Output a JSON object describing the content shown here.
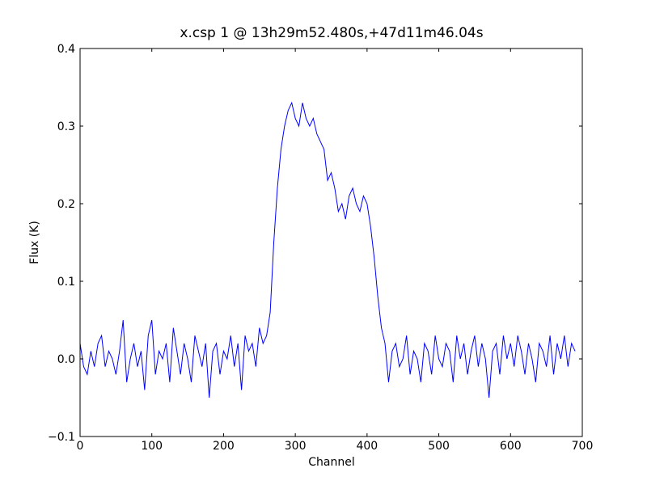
{
  "chart_data": {
    "type": "line",
    "title": "x.csp 1 @ 13h29m52.480s,+47d11m46.04s",
    "x_label": "Channel",
    "y_label": "Flux (K)",
    "xlim": [
      0,
      700
    ],
    "ylim": [
      -0.1,
      0.4
    ],
    "xticks": [
      0,
      100,
      200,
      300,
      400,
      500,
      600,
      700
    ],
    "yticks": [
      {
        "value": -0.1,
        "label": "−0.1"
      },
      {
        "value": 0,
        "label": "0.0"
      },
      0.1,
      0.2,
      0.3,
      0.4
    ],
    "x": [
      0,
      5,
      10,
      15,
      20,
      25,
      30,
      35,
      40,
      45,
      50,
      55,
      60,
      65,
      70,
      75,
      80,
      85,
      90,
      95,
      100,
      105,
      110,
      115,
      120,
      125,
      130,
      135,
      140,
      145,
      150,
      155,
      160,
      165,
      170,
      175,
      180,
      185,
      190,
      195,
      200,
      205,
      210,
      215,
      220,
      225,
      230,
      235,
      240,
      245,
      250,
      255,
      260,
      265,
      270,
      275,
      280,
      285,
      290,
      295,
      300,
      305,
      310,
      315,
      320,
      325,
      330,
      335,
      340,
      345,
      350,
      355,
      360,
      365,
      370,
      375,
      380,
      385,
      390,
      395,
      400,
      405,
      410,
      415,
      420,
      425,
      430,
      435,
      440,
      445,
      450,
      455,
      460,
      465,
      470,
      475,
      480,
      485,
      490,
      495,
      500,
      505,
      510,
      515,
      520,
      525,
      530,
      535,
      540,
      545,
      550,
      555,
      560,
      565,
      570,
      575,
      580,
      585,
      590,
      595,
      600,
      605,
      610,
      615,
      620,
      625,
      630,
      635,
      640,
      645,
      650,
      655,
      660,
      665,
      670,
      675,
      680,
      685,
      690
    ],
    "series": [
      {
        "color": "#0000ff",
        "values": [
          0.02,
          -0.01,
          -0.02,
          0.01,
          -0.01,
          0.02,
          0.03,
          -0.01,
          0.01,
          0.0,
          -0.02,
          0.01,
          0.05,
          -0.03,
          0.0,
          0.02,
          -0.01,
          0.01,
          -0.04,
          0.03,
          0.05,
          -0.02,
          0.01,
          0.0,
          0.02,
          -0.03,
          0.04,
          0.01,
          -0.02,
          0.02,
          0.0,
          -0.03,
          0.03,
          0.01,
          -0.01,
          0.02,
          -0.05,
          0.01,
          0.02,
          -0.02,
          0.01,
          0.0,
          0.03,
          -0.01,
          0.02,
          -0.04,
          0.03,
          0.01,
          0.02,
          -0.01,
          0.04,
          0.02,
          0.03,
          0.06,
          0.15,
          0.22,
          0.27,
          0.3,
          0.32,
          0.33,
          0.31,
          0.3,
          0.33,
          0.31,
          0.3,
          0.31,
          0.29,
          0.28,
          0.27,
          0.23,
          0.24,
          0.22,
          0.19,
          0.2,
          0.18,
          0.21,
          0.22,
          0.2,
          0.19,
          0.21,
          0.2,
          0.17,
          0.13,
          0.08,
          0.04,
          0.02,
          -0.03,
          0.01,
          0.02,
          -0.01,
          0.0,
          0.03,
          -0.02,
          0.01,
          0.0,
          -0.03,
          0.02,
          0.01,
          -0.02,
          0.03,
          0.0,
          -0.01,
          0.02,
          0.01,
          -0.03,
          0.03,
          0.0,
          0.02,
          -0.02,
          0.01,
          0.03,
          -0.01,
          0.02,
          0.0,
          -0.05,
          0.01,
          0.02,
          -0.02,
          0.03,
          0.0,
          0.02,
          -0.01,
          0.03,
          0.01,
          -0.02,
          0.02,
          0.0,
          -0.03,
          0.02,
          0.01,
          -0.01,
          0.03,
          -0.02,
          0.02,
          0.0,
          0.03,
          -0.01,
          0.02,
          0.01
        ]
      }
    ]
  }
}
